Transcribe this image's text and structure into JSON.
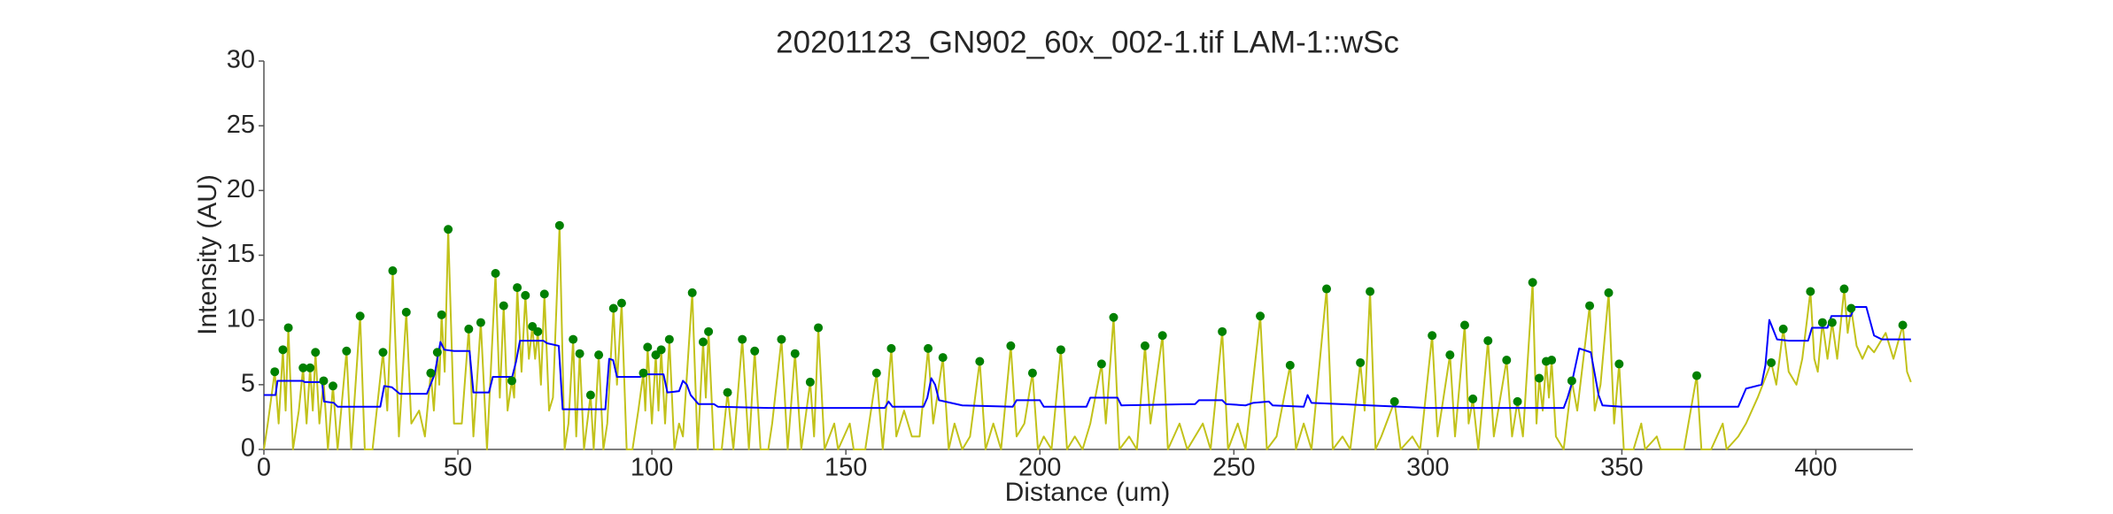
{
  "chart_data": {
    "type": "line",
    "title": "20201123_GN902_60x_002-1.tif LAM-1::wSc",
    "xlabel": "Distance (um)",
    "ylabel": "Intensity (AU)",
    "xlim": [
      0,
      425
    ],
    "ylim": [
      0,
      30
    ],
    "xticks": [
      0,
      50,
      100,
      150,
      200,
      250,
      300,
      350,
      400
    ],
    "yticks": [
      0,
      5,
      10,
      15,
      20,
      25,
      30
    ],
    "series": [
      {
        "type": "line",
        "color": "#c2c21a",
        "x": [
          0,
          1,
          2.8,
          3.8,
          4.9,
          5.6,
          6.3,
          7.5,
          9,
          10.1,
          11,
          11.9,
          12.6,
          13.3,
          14.3,
          15.4,
          16.5,
          17.8,
          19,
          21.3,
          22.5,
          24.8,
          26,
          28,
          30.7,
          31.8,
          33.2,
          34.8,
          36.7,
          38,
          40,
          41.5,
          43,
          43.8,
          44.7,
          45.2,
          45.8,
          46.6,
          47.5,
          49,
          51,
          52.8,
          54,
          55.9,
          57.5,
          59.7,
          60.8,
          61.8,
          62.8,
          63.9,
          64.5,
          65.3,
          66.4,
          67.4,
          68.3,
          69.2,
          69.9,
          70.6,
          71.4,
          72.3,
          73.5,
          74.5,
          76.2,
          77.5,
          78.5,
          79.7,
          80.5,
          81.4,
          82.5,
          84.2,
          85,
          86.3,
          87.5,
          88.5,
          90.1,
          91,
          92.2,
          93.5,
          95,
          96.5,
          97.8,
          98.3,
          98.9,
          100,
          101,
          101.7,
          102.4,
          103.4,
          104.5,
          105.8,
          107,
          108,
          110.4,
          111.8,
          113.2,
          113.9,
          114.6,
          116,
          118,
          119.5,
          121,
          123.3,
          125,
          126.5,
          128,
          130,
          131,
          133.4,
          135,
          136.9,
          138.5,
          140.8,
          141.8,
          142.9,
          144.5,
          147,
          148,
          151,
          152,
          155,
          157.9,
          159.5,
          161.7,
          163,
          165,
          167,
          169,
          171.2,
          172.5,
          173.5,
          175,
          176.5,
          178,
          180,
          182,
          184.5,
          186,
          188,
          190,
          192.5,
          194,
          196,
          198.1,
          199.5,
          201,
          203,
          205.4,
          207,
          209,
          211,
          213,
          215.9,
          217,
          219,
          220.5,
          223,
          225,
          227.1,
          228.5,
          231.6,
          233,
          236,
          238,
          240,
          242,
          244,
          247,
          248.5,
          251,
          253,
          256.8,
          258.5,
          261,
          264.5,
          266,
          268,
          270,
          273.9,
          275.5,
          278,
          280,
          282.6,
          283.7,
          285.1,
          286.5,
          288,
          291.4,
          293,
          296,
          298,
          301.1,
          302.5,
          305.7,
          307,
          309.5,
          310.5,
          311.6,
          313,
          315.5,
          317,
          320.3,
          321.7,
          323.1,
          324.5,
          327,
          328,
          328.7,
          329.6,
          330.5,
          331.2,
          331.9,
          333,
          335,
          337.1,
          338.5,
          341.7,
          343,
          344.5,
          346.6,
          348,
          349.3,
          350.5,
          353,
          355,
          356,
          359,
          360,
          363,
          366,
          369.3,
          370.5,
          373,
          376,
          377,
          380,
          382,
          385,
          388.5,
          389.8,
          391.6,
          393,
          395,
          396.5,
          398.6,
          399.6,
          400.5,
          401.7,
          403,
          404.2,
          405.5,
          407.3,
          408.2,
          409.1,
          410.5,
          412,
          413.5,
          415,
          418,
          420,
          422.4,
          423.5,
          424.5
        ],
        "values": [
          0,
          2,
          6.0,
          2,
          7.7,
          3,
          9.4,
          0,
          3,
          6.3,
          2,
          6.3,
          3,
          7.5,
          2,
          5.3,
          0,
          4.9,
          0,
          7.6,
          0,
          10.3,
          0,
          0,
          7.5,
          3,
          13.8,
          1,
          10.6,
          2,
          3,
          1,
          5.9,
          3,
          7.5,
          5,
          10.4,
          6,
          17.0,
          2,
          2,
          9.3,
          1,
          9.8,
          0,
          13.6,
          4,
          11.1,
          3,
          5.3,
          4,
          12.5,
          6,
          11.9,
          7,
          9.5,
          7,
          9.1,
          5,
          12.0,
          3,
          4,
          17.3,
          0,
          2,
          8.5,
          1,
          7.4,
          0,
          4.2,
          0,
          7.3,
          0,
          2,
          10.9,
          5,
          11.3,
          0,
          0,
          3,
          5.9,
          3,
          7.9,
          2,
          7.3,
          3,
          7.7,
          2,
          8.5,
          0,
          2,
          1,
          12.1,
          0,
          8.3,
          4,
          9.1,
          0,
          0,
          4.4,
          0,
          8.5,
          0,
          7.6,
          0,
          0,
          2,
          8.5,
          0,
          7.4,
          0,
          5.2,
          1,
          9.4,
          0,
          2,
          0,
          2,
          0,
          0,
          5.9,
          0,
          7.8,
          1,
          3,
          1,
          1,
          7.8,
          2,
          4,
          7.1,
          0,
          2,
          0,
          1,
          6.8,
          0,
          2,
          0,
          8.0,
          1,
          2,
          5.9,
          0,
          1,
          0,
          7.7,
          0,
          1,
          0,
          2,
          6.6,
          2,
          10.2,
          0,
          1,
          0,
          8.0,
          2,
          8.8,
          0,
          2,
          0,
          1,
          2,
          0,
          9.1,
          0,
          2,
          0,
          10.3,
          0,
          1,
          6.5,
          0,
          2,
          0,
          12.4,
          0,
          1,
          0,
          6.7,
          3,
          12.2,
          0,
          1,
          3.7,
          0,
          1,
          0,
          8.8,
          1,
          7.3,
          1,
          9.6,
          2,
          3.9,
          0,
          8.4,
          1,
          6.9,
          1,
          3.7,
          1,
          12.9,
          2,
          5.5,
          3,
          6.8,
          4,
          6.9,
          1,
          0,
          5.3,
          3,
          11.1,
          3,
          5,
          12.1,
          2,
          6.6,
          0,
          0,
          2,
          0,
          1,
          0,
          0,
          0,
          5.7,
          0,
          0,
          2,
          0,
          1,
          2,
          4,
          6.7,
          5,
          9.3,
          6,
          5,
          7,
          12.2,
          7,
          6,
          9.8,
          7,
          9.8,
          7,
          12.4,
          9,
          10.9,
          8,
          7,
          8,
          7.5,
          9,
          7,
          9.6,
          6,
          5.2
        ]
      },
      {
        "type": "line",
        "color": "#0000ff",
        "x": [
          0,
          3,
          3.5,
          10,
          10.5,
          15,
          15.5,
          18,
          19,
          30,
          31,
          33,
          35,
          42,
          44,
          45.5,
          46.5,
          49,
          53,
          54,
          58,
          59,
          64,
          65,
          66,
          72,
          73,
          76,
          77,
          88,
          89,
          90,
          91,
          97,
          98,
          103,
          104,
          107,
          108,
          109,
          110,
          112,
          116,
          117,
          130,
          160,
          161,
          162,
          170,
          171,
          172,
          173,
          174,
          180,
          193,
          194,
          200,
          201,
          212,
          213,
          220,
          221,
          240,
          241,
          247,
          248,
          253,
          255,
          259,
          260,
          268,
          269,
          270,
          285,
          300,
          335,
          336,
          337,
          339,
          342,
          344,
          345,
          350,
          380,
          382,
          386,
          387,
          388,
          390,
          393,
          398,
          399,
          403,
          404,
          409,
          410,
          413,
          415,
          417,
          424.5
        ],
        "values": [
          4.2,
          4.2,
          5.3,
          5.3,
          5.2,
          5.2,
          3.7,
          3.6,
          3.3,
          3.3,
          4.9,
          4.8,
          4.3,
          4.3,
          5.8,
          8.3,
          7.7,
          7.6,
          7.6,
          4.4,
          4.4,
          5.6,
          5.6,
          6.8,
          8.4,
          8.4,
          8.2,
          8.0,
          3.1,
          3.1,
          7.0,
          6.9,
          5.6,
          5.6,
          5.8,
          5.8,
          4.4,
          4.5,
          5.3,
          5.0,
          4.2,
          3.5,
          3.5,
          3.3,
          3.2,
          3.2,
          3.7,
          3.3,
          3.3,
          4.0,
          5.5,
          5.0,
          3.8,
          3.4,
          3.3,
          3.8,
          3.8,
          3.3,
          3.3,
          4.0,
          4.0,
          3.4,
          3.5,
          3.8,
          3.8,
          3.5,
          3.4,
          3.6,
          3.7,
          3.4,
          3.3,
          4.2,
          3.6,
          3.4,
          3.2,
          3.2,
          4.0,
          5.0,
          7.8,
          7.5,
          4.2,
          3.4,
          3.3,
          3.3,
          4.7,
          5.0,
          6.5,
          10.0,
          8.5,
          8.4,
          8.4,
          9.4,
          9.4,
          10.3,
          10.3,
          11.0,
          11.0,
          8.8,
          8.5,
          8.5
        ]
      },
      {
        "type": "scatter",
        "color": "#008000",
        "x": [
          2.8,
          4.9,
          6.3,
          10.1,
          11.9,
          13.3,
          15.4,
          17.8,
          21.3,
          24.8,
          30.7,
          33.2,
          36.7,
          43.0,
          44.7,
          45.8,
          47.5,
          52.8,
          55.9,
          59.7,
          61.8,
          63.9,
          65.3,
          67.4,
          69.2,
          70.6,
          72.3,
          76.2,
          79.7,
          81.4,
          84.2,
          86.3,
          90.1,
          92.2,
          97.8,
          98.9,
          101.0,
          102.4,
          104.5,
          110.4,
          113.2,
          114.6,
          119.5,
          123.3,
          126.5,
          133.4,
          136.9,
          140.8,
          142.9,
          157.9,
          161.7,
          171.2,
          175.0,
          184.5,
          192.5,
          198.1,
          205.4,
          215.9,
          219.0,
          227.1,
          231.6,
          247.0,
          256.8,
          264.5,
          273.9,
          282.6,
          285.1,
          291.4,
          301.1,
          305.7,
          309.5,
          311.6,
          315.5,
          320.3,
          323.1,
          327.0,
          328.7,
          330.5,
          331.9,
          337.1,
          341.7,
          346.6,
          349.3,
          369.3,
          388.5,
          391.6,
          398.6,
          401.7,
          404.2,
          407.3,
          409.1,
          422.4
        ],
        "values": [
          6.0,
          7.7,
          9.4,
          6.3,
          6.3,
          7.5,
          5.3,
          4.9,
          7.6,
          10.3,
          7.5,
          13.8,
          10.6,
          5.9,
          7.5,
          10.4,
          17.0,
          9.3,
          9.8,
          13.6,
          11.1,
          5.3,
          12.5,
          11.9,
          9.5,
          9.1,
          12.0,
          17.3,
          8.5,
          7.4,
          4.2,
          7.3,
          10.9,
          11.3,
          5.9,
          7.9,
          7.3,
          7.7,
          8.5,
          12.1,
          8.3,
          9.1,
          4.4,
          8.5,
          7.6,
          8.5,
          7.4,
          5.2,
          9.4,
          5.9,
          7.8,
          7.8,
          7.1,
          6.8,
          8.0,
          5.9,
          7.7,
          6.6,
          10.2,
          8.0,
          8.8,
          9.1,
          10.3,
          6.5,
          12.4,
          6.7,
          12.2,
          3.7,
          8.8,
          7.3,
          9.6,
          3.9,
          8.4,
          6.9,
          3.7,
          12.9,
          5.5,
          6.8,
          6.9,
          5.3,
          11.1,
          12.1,
          6.6,
          5.7,
          6.7,
          9.3,
          12.2,
          9.8,
          9.8,
          12.4,
          10.9,
          9.6
        ]
      }
    ]
  }
}
